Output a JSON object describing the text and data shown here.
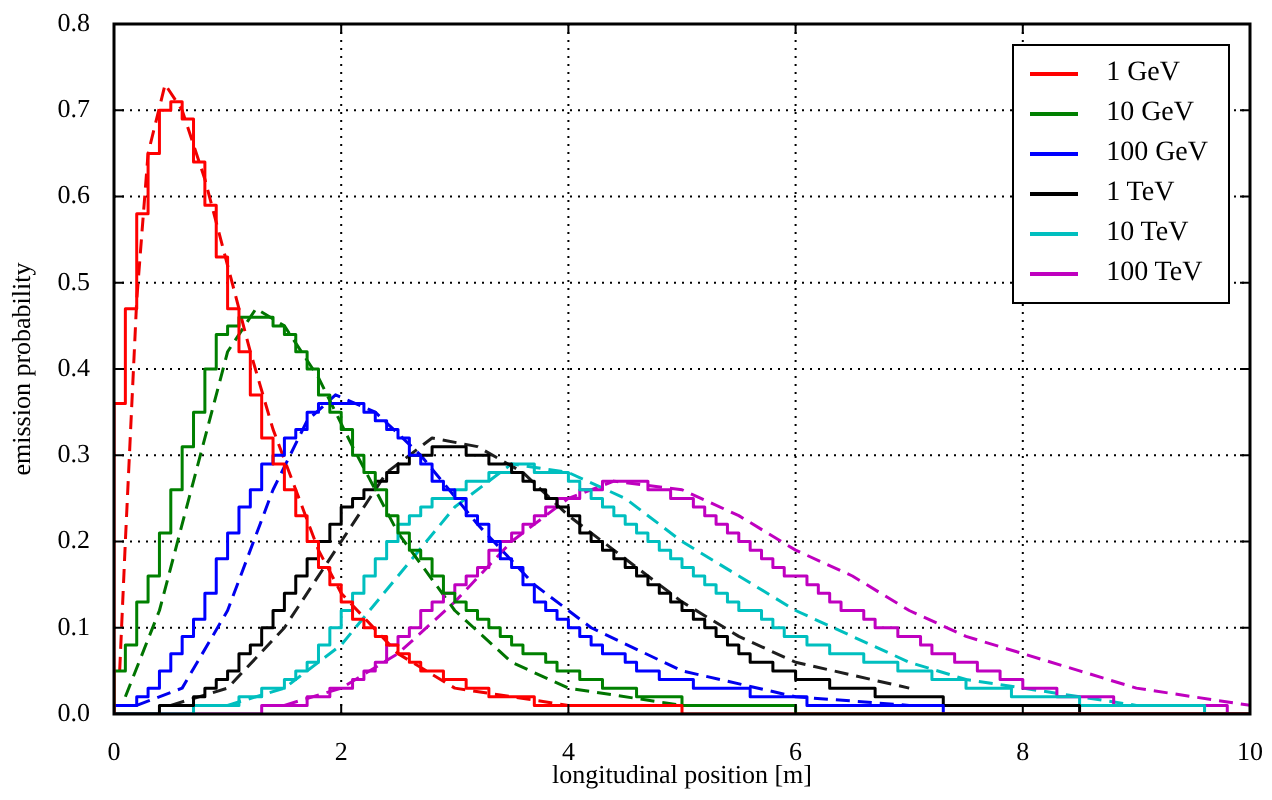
{
  "chart_data": {
    "type": "histogram",
    "xlabel": "longitudinal position [m]",
    "ylabel": "emission probability",
    "bins": [
      0,
      0.1,
      0.2,
      0.3,
      0.4,
      0.5,
      0.6,
      0.7,
      0.8,
      0.9,
      1,
      1.1,
      1.2,
      1.3,
      1.4,
      1.5,
      1.6,
      1.7,
      1.8,
      1.9,
      2,
      2.1,
      2.2,
      2.3,
      2.4,
      2.5,
      2.6,
      2.7,
      2.8,
      2.9,
      3,
      3.1,
      3.2,
      3.3,
      3.4,
      3.5,
      3.6,
      3.7,
      3.8,
      3.9,
      4,
      4.1,
      4.2,
      4.3,
      4.4,
      4.5,
      4.6,
      4.7,
      4.8,
      4.9,
      5,
      5.1,
      5.2,
      5.3,
      5.4,
      5.5,
      5.6,
      5.7,
      5.8,
      5.9,
      6,
      6.1,
      6.2,
      6.3,
      6.4,
      6.5,
      6.6,
      6.7,
      6.8,
      6.9,
      7,
      7.1,
      7.2,
      7.3,
      7.4,
      7.5,
      7.6,
      7.7,
      7.8,
      7.9,
      8,
      8.1,
      8.2,
      8.3,
      8.4,
      8.5,
      8.6,
      8.7,
      8.8,
      8.9,
      9,
      9.1,
      9.2,
      9.3,
      9.4,
      9.5,
      9.6,
      9.7,
      9.8,
      9.9,
      10
    ],
    "xlim": [
      0,
      10
    ],
    "xticks": [
      0,
      2,
      4,
      6,
      8,
      10
    ],
    "ylim": [
      0,
      0.8
    ],
    "yticks": [
      {
        "value": 0,
        "label": "0.0"
      },
      0.1,
      0.2,
      0.3,
      0.4,
      0.5,
      0.6,
      0.7,
      0.8
    ],
    "grid": true,
    "legend": "top right",
    "series": [
      {
        "name": "1 GeV",
        "color": "#ff0000",
        "values": [
          0.36,
          0.47,
          0.58,
          0.65,
          0.7,
          0.71,
          0.69,
          0.64,
          0.59,
          0.53,
          0.47,
          0.42,
          0.37,
          0.32,
          0.29,
          0.26,
          0.23,
          0.2,
          0.17,
          0.15,
          0.13,
          0.11,
          0.1,
          0.09,
          0.08,
          0.07,
          0.06,
          0.05,
          0.05,
          0.04,
          0.04,
          0.03,
          0.03,
          0.02,
          0.02,
          0.02,
          0.02,
          0.01,
          0.01,
          0.01,
          0.01,
          0.01,
          0.01,
          0.01,
          0.01,
          0.01,
          0.01,
          0.01,
          0.01,
          0.01,
          0,
          0,
          0,
          0,
          0,
          0,
          0,
          0,
          0,
          0,
          0,
          0,
          0,
          0,
          0,
          0,
          0,
          0,
          0,
          0,
          0,
          0,
          0,
          0,
          0,
          0,
          0,
          0,
          0,
          0,
          0,
          0,
          0,
          0,
          0,
          0,
          0,
          0,
          0,
          0,
          0,
          0,
          0,
          0,
          0,
          0,
          0,
          0,
          0,
          0
        ]
      },
      {
        "name": "10 GeV",
        "color": "#008000",
        "values": [
          0.05,
          0.08,
          0.13,
          0.16,
          0.21,
          0.26,
          0.31,
          0.35,
          0.4,
          0.44,
          0.45,
          0.46,
          0.46,
          0.46,
          0.45,
          0.44,
          0.42,
          0.4,
          0.37,
          0.35,
          0.33,
          0.3,
          0.28,
          0.26,
          0.23,
          0.21,
          0.19,
          0.18,
          0.16,
          0.14,
          0.13,
          0.12,
          0.11,
          0.1,
          0.09,
          0.08,
          0.07,
          0.07,
          0.06,
          0.05,
          0.05,
          0.04,
          0.04,
          0.03,
          0.03,
          0.03,
          0.02,
          0.02,
          0.02,
          0.02,
          0.01,
          0.01,
          0.01,
          0.01,
          0.01,
          0.01,
          0.01,
          0.01,
          0.01,
          0.01,
          0,
          0,
          0,
          0,
          0,
          0,
          0,
          0,
          0,
          0,
          0,
          0,
          0,
          0,
          0,
          0,
          0,
          0,
          0,
          0,
          0,
          0,
          0,
          0,
          0,
          0,
          0,
          0,
          0,
          0,
          0,
          0,
          0,
          0,
          0,
          0,
          0,
          0,
          0,
          0
        ]
      },
      {
        "name": "100 GeV",
        "color": "#0000ff",
        "values": [
          0.01,
          0.01,
          0.02,
          0.03,
          0.05,
          0.07,
          0.09,
          0.11,
          0.14,
          0.18,
          0.21,
          0.24,
          0.26,
          0.29,
          0.3,
          0.32,
          0.33,
          0.35,
          0.36,
          0.36,
          0.36,
          0.36,
          0.35,
          0.34,
          0.33,
          0.32,
          0.3,
          0.29,
          0.27,
          0.26,
          0.25,
          0.23,
          0.22,
          0.2,
          0.18,
          0.17,
          0.15,
          0.13,
          0.12,
          0.11,
          0.1,
          0.09,
          0.08,
          0.07,
          0.07,
          0.06,
          0.05,
          0.05,
          0.04,
          0.04,
          0.04,
          0.03,
          0.03,
          0.03,
          0.03,
          0.03,
          0.02,
          0.02,
          0.02,
          0.02,
          0.02,
          0.01,
          0.01,
          0.01,
          0.01,
          0.01,
          0.01,
          0.01,
          0.01,
          0.01,
          0.01,
          0.01,
          0.01,
          0,
          0,
          0,
          0,
          0,
          0,
          0,
          0,
          0,
          0,
          0,
          0,
          0,
          0,
          0,
          0,
          0,
          0,
          0,
          0,
          0,
          0,
          0,
          0,
          0,
          0,
          0
        ]
      },
      {
        "name": "1 TeV",
        "color": "#000000",
        "values": [
          0,
          0,
          0,
          0,
          0.01,
          0.01,
          0.01,
          0.02,
          0.03,
          0.04,
          0.05,
          0.07,
          0.08,
          0.1,
          0.12,
          0.14,
          0.16,
          0.18,
          0.2,
          0.22,
          0.24,
          0.25,
          0.26,
          0.27,
          0.28,
          0.29,
          0.3,
          0.3,
          0.31,
          0.31,
          0.31,
          0.3,
          0.3,
          0.29,
          0.29,
          0.28,
          0.27,
          0.26,
          0.25,
          0.24,
          0.23,
          0.21,
          0.2,
          0.19,
          0.18,
          0.17,
          0.16,
          0.15,
          0.14,
          0.13,
          0.12,
          0.11,
          0.1,
          0.09,
          0.08,
          0.07,
          0.06,
          0.06,
          0.05,
          0.05,
          0.04,
          0.04,
          0.04,
          0.03,
          0.03,
          0.03,
          0.03,
          0.02,
          0.02,
          0.02,
          0.02,
          0.02,
          0.02,
          0.01,
          0.01,
          0.01,
          0.01,
          0.01,
          0.01,
          0.01,
          0.01,
          0.01,
          0.01,
          0.01,
          0.01,
          0,
          0,
          0,
          0,
          0,
          0,
          0,
          0,
          0,
          0,
          0,
          0,
          0,
          0,
          0
        ]
      },
      {
        "name": "10 TeV",
        "color": "#00bfbf",
        "values": [
          0,
          0,
          0,
          0,
          0,
          0,
          0,
          0.01,
          0.01,
          0.01,
          0.01,
          0.02,
          0.02,
          0.03,
          0.03,
          0.04,
          0.05,
          0.06,
          0.08,
          0.1,
          0.12,
          0.14,
          0.16,
          0.18,
          0.2,
          0.22,
          0.23,
          0.24,
          0.25,
          0.25,
          0.26,
          0.27,
          0.27,
          0.28,
          0.28,
          0.29,
          0.29,
          0.28,
          0.28,
          0.28,
          0.27,
          0.26,
          0.25,
          0.24,
          0.23,
          0.22,
          0.21,
          0.2,
          0.19,
          0.18,
          0.17,
          0.16,
          0.15,
          0.14,
          0.13,
          0.12,
          0.12,
          0.11,
          0.1,
          0.09,
          0.09,
          0.08,
          0.08,
          0.07,
          0.07,
          0.07,
          0.06,
          0.06,
          0.06,
          0.05,
          0.05,
          0.05,
          0.04,
          0.04,
          0.04,
          0.03,
          0.03,
          0.03,
          0.03,
          0.02,
          0.02,
          0.02,
          0.02,
          0.02,
          0.02,
          0.01,
          0.01,
          0.01,
          0.01,
          0.01,
          0.01,
          0.01,
          0.01,
          0.01,
          0.01,
          0.01,
          0,
          0,
          0,
          0
        ]
      },
      {
        "name": "100 TeV",
        "color": "#bf00bf",
        "values": [
          0,
          0,
          0,
          0,
          0,
          0,
          0,
          0,
          0,
          0,
          0,
          0,
          0,
          0.01,
          0.01,
          0.01,
          0.01,
          0.02,
          0.02,
          0.03,
          0.03,
          0.04,
          0.05,
          0.06,
          0.08,
          0.09,
          0.1,
          0.12,
          0.13,
          0.14,
          0.15,
          0.16,
          0.17,
          0.19,
          0.2,
          0.21,
          0.22,
          0.23,
          0.24,
          0.25,
          0.25,
          0.26,
          0.26,
          0.27,
          0.27,
          0.27,
          0.27,
          0.26,
          0.26,
          0.25,
          0.25,
          0.24,
          0.23,
          0.22,
          0.21,
          0.2,
          0.19,
          0.18,
          0.17,
          0.16,
          0.16,
          0.15,
          0.14,
          0.13,
          0.12,
          0.12,
          0.11,
          0.1,
          0.1,
          0.09,
          0.09,
          0.08,
          0.07,
          0.07,
          0.06,
          0.06,
          0.05,
          0.05,
          0.04,
          0.04,
          0.03,
          0.03,
          0.03,
          0.02,
          0.02,
          0.02,
          0.02,
          0.02,
          0.01,
          0.01,
          0.01,
          0.01,
          0.01,
          0.01,
          0.01,
          0.01,
          0.01,
          0.01,
          0,
          0
        ]
      },
      {
        "type": "line",
        "line_style": "dashed",
        "color": "#ee0000",
        "x": [
          0.05,
          0.1,
          0.2,
          0.3,
          0.45,
          0.6,
          0.8,
          1.0,
          1.2,
          1.4,
          1.6,
          1.8,
          2.0,
          2.5,
          3,
          4
        ],
        "values": [
          0.05,
          0.2,
          0.48,
          0.65,
          0.73,
          0.7,
          0.62,
          0.52,
          0.42,
          0.33,
          0.26,
          0.19,
          0.14,
          0.07,
          0.03,
          0.01
        ]
      },
      {
        "type": "line",
        "line_style": "dashed",
        "color": "#007400",
        "x": [
          0.1,
          0.4,
          0.7,
          1.0,
          1.25,
          1.5,
          1.8,
          2.1,
          2.5,
          3,
          3.5,
          4,
          5
        ],
        "values": [
          0.02,
          0.12,
          0.27,
          0.42,
          0.47,
          0.45,
          0.39,
          0.31,
          0.21,
          0.12,
          0.06,
          0.03,
          0.01
        ]
      },
      {
        "type": "line",
        "line_style": "dashed",
        "color": "#0000ee",
        "x": [
          0.2,
          0.6,
          1.0,
          1.4,
          1.7,
          1.95,
          2.3,
          2.7,
          3.2,
          3.7,
          4.2,
          5,
          6,
          7
        ],
        "values": [
          0.01,
          0.03,
          0.12,
          0.26,
          0.34,
          0.37,
          0.35,
          0.3,
          0.22,
          0.15,
          0.1,
          0.05,
          0.02,
          0.01
        ]
      },
      {
        "type": "line",
        "line_style": "dashed",
        "color": "#1e1e1e",
        "x": [
          0.5,
          1,
          1.5,
          2,
          2.4,
          2.8,
          3.2,
          3.6,
          4,
          4.5,
          5,
          5.5,
          6,
          7
        ],
        "values": [
          0.01,
          0.03,
          0.1,
          0.2,
          0.28,
          0.32,
          0.31,
          0.28,
          0.23,
          0.18,
          0.13,
          0.09,
          0.06,
          0.03
        ]
      },
      {
        "type": "line",
        "line_style": "dashed",
        "color": "#00bfbf",
        "x": [
          1,
          1.5,
          2,
          2.5,
          3,
          3.5,
          4,
          4.5,
          5,
          5.5,
          6,
          6.5,
          7,
          7.5,
          8,
          9
        ],
        "values": [
          0.01,
          0.03,
          0.08,
          0.16,
          0.24,
          0.29,
          0.28,
          0.25,
          0.2,
          0.16,
          0.12,
          0.09,
          0.06,
          0.04,
          0.03,
          0.01
        ]
      },
      {
        "type": "line",
        "line_style": "dashed",
        "color": "#bf00bf",
        "x": [
          1.5,
          2,
          2.5,
          3,
          3.5,
          4,
          4.4,
          5,
          5.5,
          6,
          6.5,
          7,
          7.5,
          8,
          8.5,
          9,
          10
        ],
        "values": [
          0.01,
          0.03,
          0.07,
          0.13,
          0.2,
          0.25,
          0.27,
          0.26,
          0.23,
          0.19,
          0.16,
          0.12,
          0.09,
          0.07,
          0.05,
          0.03,
          0.01
        ]
      }
    ]
  }
}
